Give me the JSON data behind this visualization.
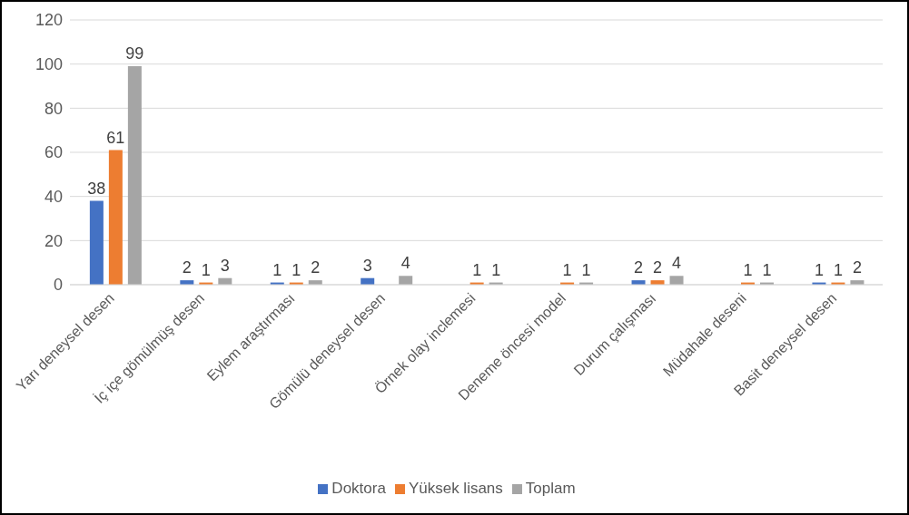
{
  "chart_data": {
    "type": "bar",
    "categories": [
      "Yarı deneysel desen",
      "İç içe gömülmüş desen",
      "Eylem araştırması",
      "Gömülü deneysel desen",
      "Örnek olay inclemesi",
      "Deneme öncesi model",
      "Durum çalışması",
      "Müdahale deseni",
      "Basit deneysel desen"
    ],
    "series": [
      {
        "name": "Doktora",
        "color": "#4472c4",
        "values": [
          38,
          2,
          1,
          3,
          null,
          null,
          2,
          null,
          1
        ],
        "value_labels": [
          "38",
          "2",
          "1",
          "3",
          null,
          null,
          "2",
          null,
          "1"
        ]
      },
      {
        "name": "Yüksek lisans",
        "color": "#ed7d31",
        "values": [
          61,
          1,
          1,
          null,
          1,
          1,
          2,
          1,
          1
        ],
        "value_labels": [
          "61",
          "1",
          "1",
          null,
          "1",
          "1",
          "2",
          "1",
          "1"
        ]
      },
      {
        "name": "Toplam",
        "color": "#a5a5a5",
        "values": [
          99,
          3,
          2,
          4,
          1,
          1,
          4,
          1,
          2
        ],
        "value_labels": [
          "99",
          "3",
          "2",
          "4",
          "1",
          "1",
          "4",
          "1",
          "2"
        ]
      }
    ],
    "ylim": [
      0,
      120
    ],
    "yticks": [
      0,
      20,
      40,
      60,
      80,
      100,
      120
    ],
    "grid": "y",
    "legend": "bottom"
  }
}
